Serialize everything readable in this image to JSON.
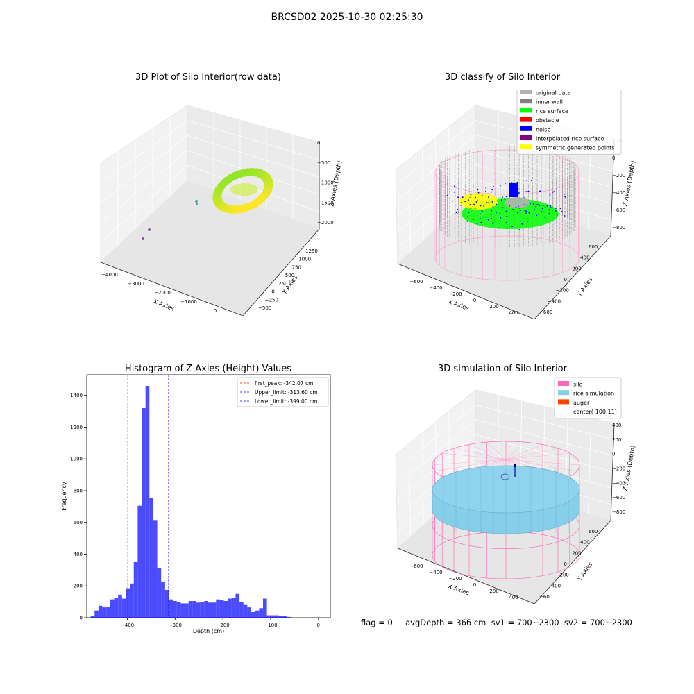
{
  "suptitle": "BRCSD02 2025-10-30 02:25:30",
  "footer": "flag = 0     avgDepth = 366 cm  sv1 = 700~2300  sv2 = 700~2300",
  "panels": {
    "raw": {
      "title": "3D Plot of Silo Interior(row data)",
      "xlabel": "X Axies",
      "ylabel": "Y Axies",
      "zlabel": "Z Axies (Depth)",
      "xticks": [
        "−4000",
        "−3000",
        "−2000",
        "−1000",
        "0"
      ],
      "yticks": [
        "−500",
        "−250",
        "0",
        "250",
        "500",
        "750",
        "1000",
        "1250"
      ],
      "zticks": [
        "0",
        "−500",
        "−1000",
        "−1500",
        "−2000"
      ]
    },
    "classify": {
      "title": "3D classify of Silo Interior",
      "xlabel": "X Axies",
      "ylabel": "Y Axies",
      "zlabel": "Z Axies (Depth)",
      "xticks": [
        "−600",
        "−400",
        "−200",
        "0",
        "200",
        "400"
      ],
      "yticks": [
        "−600",
        "−400",
        "−200",
        "0",
        "200",
        "400",
        "600"
      ],
      "zticks": [
        "200",
        "0",
        "−200",
        "−400",
        "−600",
        "−800"
      ],
      "legend": [
        {
          "label": "original data",
          "color": "#b3b3b3"
        },
        {
          "label": "inner wall",
          "color": "#808080"
        },
        {
          "label": "rice surface",
          "color": "#00ff00"
        },
        {
          "label": "obstacle",
          "color": "#ff0000"
        },
        {
          "label": "noise",
          "color": "#0000ff"
        },
        {
          "label": "interpolated rice surface",
          "color": "#800080"
        },
        {
          "label": "symmetric generated points",
          "color": "#ffff00"
        }
      ]
    },
    "simulation": {
      "title": "3D simulation of Silo Interior",
      "xlabel": "X Axies",
      "ylabel": "Y Axies",
      "zlabel": "Z Axies (Depth)",
      "xticks": [
        "−600",
        "−400",
        "−200",
        "0",
        "200",
        "400"
      ],
      "yticks": [
        "−600",
        "−400",
        "−200",
        "0",
        "200",
        "400",
        "600"
      ],
      "zticks": [
        "400",
        "200",
        "0",
        "−200",
        "−400",
        "−600",
        "−800"
      ],
      "legend": [
        {
          "label": "silo",
          "color": "#ff69b4"
        },
        {
          "label": "rice simulation",
          "color": "#87ceeb"
        },
        {
          "label": "auger",
          "color": "#ff4500"
        },
        {
          "label": "center(-100,11)",
          "color": ""
        }
      ]
    }
  },
  "chart_data": {
    "type": "bar",
    "title": "Histogram of Z-Axies (Height) Values",
    "xlabel": "Depth (cm)",
    "ylabel": "Frequency",
    "xlim": [
      -485,
      25
    ],
    "ylim": [
      0,
      1530
    ],
    "xticks": [
      -400,
      -300,
      -200,
      -100,
      0
    ],
    "yticks": [
      0,
      200,
      400,
      600,
      800,
      1000,
      1200,
      1400
    ],
    "bar_color": "#0000ff",
    "bin_width": 8.2,
    "bins": [
      [
        -476.8,
        10
      ],
      [
        -468.6,
        45
      ],
      [
        -460.4,
        75
      ],
      [
        -452.2,
        65
      ],
      [
        -444.0,
        70
      ],
      [
        -435.8,
        115
      ],
      [
        -427.6,
        125
      ],
      [
        -419.4,
        145
      ],
      [
        -411.2,
        120
      ],
      [
        -403.0,
        185
      ],
      [
        -394.8,
        215
      ],
      [
        -386.6,
        350
      ],
      [
        -378.4,
        705
      ],
      [
        -370.2,
        1320
      ],
      [
        -362.0,
        1460
      ],
      [
        -353.8,
        755
      ],
      [
        -345.6,
        615
      ],
      [
        -337.4,
        315
      ],
      [
        -329.2,
        225
      ],
      [
        -321.0,
        175
      ],
      [
        -312.8,
        115
      ],
      [
        -304.6,
        105
      ],
      [
        -296.4,
        100
      ],
      [
        -288.2,
        90
      ],
      [
        -280.0,
        90
      ],
      [
        -271.8,
        105
      ],
      [
        -263.6,
        105
      ],
      [
        -255.4,
        95
      ],
      [
        -247.2,
        100
      ],
      [
        -239.0,
        105
      ],
      [
        -230.8,
        95
      ],
      [
        -222.6,
        95
      ],
      [
        -214.4,
        115
      ],
      [
        -206.2,
        110
      ],
      [
        -198.0,
        105
      ],
      [
        -189.8,
        120
      ],
      [
        -181.6,
        125
      ],
      [
        -173.4,
        150
      ],
      [
        -165.2,
        100
      ],
      [
        -157.0,
        80
      ],
      [
        -148.8,
        65
      ],
      [
        -140.6,
        35
      ],
      [
        -132.4,
        45
      ],
      [
        -124.2,
        60
      ],
      [
        -116.0,
        120
      ],
      [
        -107.8,
        15
      ],
      [
        -99.6,
        15
      ],
      [
        -91.4,
        15
      ],
      [
        -83.2,
        10
      ],
      [
        -75.0,
        10
      ],
      [
        -66.8,
        5
      ]
    ],
    "vlines": [
      {
        "label": "first_peak: -342.07 cm",
        "x": -342.07,
        "color": "#ff0000"
      },
      {
        "label": "Upper_limit: -313.60 cm",
        "x": -313.6,
        "color": "#0000ff"
      },
      {
        "label": "Lower_limit: -399.00 cm",
        "x": -399.0,
        "color": "#0000ff"
      }
    ]
  }
}
